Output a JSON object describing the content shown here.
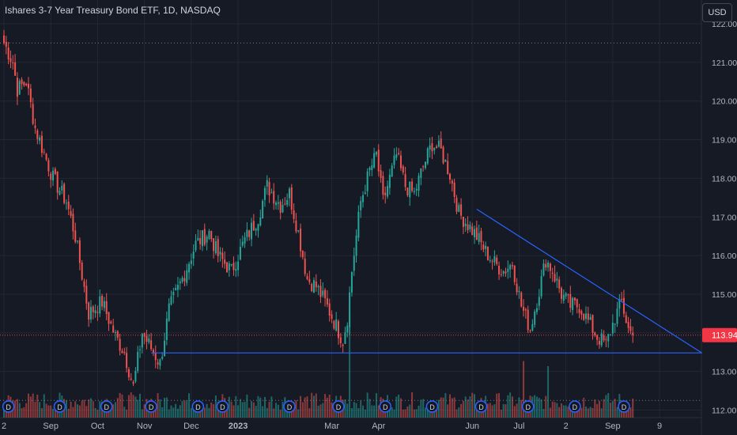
{
  "header": {
    "title": "Ishares 3-7 Year Treasury Bond ETF, 1D, NASDAQ",
    "currency_button": "USD"
  },
  "colors": {
    "background": "#161a25",
    "up": "#26a69a",
    "down": "#ef5350",
    "trendline": "#2962ff",
    "grid": "#232733",
    "axis_text": "#b2b5be",
    "price_label_bg": "#f23645"
  },
  "chart_data": {
    "type": "candlestick",
    "symbol": "Ishares 3-7 Year Treasury Bond ETF",
    "interval": "1D",
    "exchange": "NASDAQ",
    "y_axis": {
      "range": [
        111.5,
        122.2
      ],
      "ticks": [
        "122.00",
        "121.00",
        "120.00",
        "119.00",
        "118.00",
        "117.00",
        "116.00",
        "115.00",
        "114.00",
        "113.00",
        "112.00"
      ]
    },
    "x_axis": {
      "ticks": [
        "2",
        "Sep",
        "Oct",
        "Nov",
        "Dec",
        "2023",
        "Mar",
        "Apr",
        "Jun",
        "Jul",
        "2",
        "Sep",
        "9"
      ],
      "tick_bold": [
        false,
        false,
        false,
        false,
        false,
        true,
        false,
        false,
        false,
        false,
        false,
        false,
        false
      ],
      "tick_index": [
        0,
        21,
        42,
        63,
        84,
        105,
        147,
        168,
        210,
        231,
        252,
        273,
        294
      ]
    },
    "last_price": "113.94",
    "high_line": 121.5,
    "low_line": 112.25,
    "trendlines": [
      {
        "from": {
          "index": 66,
          "price": 113.48
        },
        "to": {
          "index": 313,
          "price": 113.48
        }
      },
      {
        "from": {
          "index": 212,
          "price": 117.2
        },
        "to": {
          "index": 313,
          "price": 113.48
        }
      }
    ],
    "waypoints": [
      [
        0,
        121.5
      ],
      [
        4,
        121.0
      ],
      [
        6,
        120.3
      ],
      [
        10,
        120.5
      ],
      [
        14,
        119.3
      ],
      [
        22,
        118.0
      ],
      [
        28,
        117.4
      ],
      [
        32,
        116.5
      ],
      [
        38,
        114.5
      ],
      [
        44,
        114.8
      ],
      [
        50,
        113.9
      ],
      [
        54,
        113.5
      ],
      [
        58,
        112.6
      ],
      [
        62,
        114.0
      ],
      [
        66,
        113.6
      ],
      [
        70,
        113.2
      ],
      [
        74,
        114.6
      ],
      [
        80,
        115.4
      ],
      [
        86,
        116.3
      ],
      [
        92,
        116.6
      ],
      [
        96,
        116.0
      ],
      [
        102,
        115.6
      ],
      [
        108,
        116.4
      ],
      [
        114,
        117.0
      ],
      [
        118,
        117.8
      ],
      [
        124,
        117.3
      ],
      [
        128,
        117.6
      ],
      [
        132,
        116.6
      ],
      [
        136,
        115.4
      ],
      [
        140,
        115.2
      ],
      [
        144,
        114.8
      ],
      [
        148,
        114.3
      ],
      [
        152,
        113.8
      ],
      [
        154,
        114.4
      ],
      [
        156,
        115.6
      ],
      [
        160,
        117.4
      ],
      [
        164,
        118.2
      ],
      [
        167,
        118.6
      ],
      [
        170,
        117.4
      ],
      [
        173,
        118.0
      ],
      [
        176,
        118.6
      ],
      [
        180,
        117.8
      ],
      [
        184,
        117.6
      ],
      [
        188,
        118.3
      ],
      [
        192,
        118.9
      ],
      [
        196,
        118.7
      ],
      [
        200,
        118.1
      ],
      [
        204,
        117.1
      ],
      [
        208,
        116.8
      ],
      [
        212,
        116.5
      ],
      [
        216,
        116.1
      ],
      [
        220,
        115.8
      ],
      [
        224,
        115.6
      ],
      [
        228,
        115.8
      ],
      [
        232,
        114.7
      ],
      [
        236,
        114.1
      ],
      [
        240,
        115.1
      ],
      [
        243,
        115.9
      ],
      [
        246,
        115.6
      ],
      [
        250,
        115.0
      ],
      [
        254,
        114.7
      ],
      [
        258,
        114.7
      ],
      [
        262,
        114.3
      ],
      [
        266,
        113.9
      ],
      [
        270,
        113.7
      ],
      [
        274,
        114.4
      ],
      [
        277,
        114.8
      ],
      [
        280,
        114.1
      ],
      [
        282,
        113.94
      ]
    ],
    "volume": {
      "note": "relative daily volume bars at bottom of chart",
      "spikes": [
        {
          "index": 155,
          "level": 1.0
        },
        {
          "index": 233,
          "level": 0.55
        },
        {
          "index": 244,
          "level": 0.5
        }
      ]
    },
    "event_markers": {
      "label": "D",
      "indices": [
        2,
        25,
        46,
        66,
        87,
        98,
        128,
        150,
        171,
        192,
        214,
        235,
        256,
        278
      ]
    }
  }
}
